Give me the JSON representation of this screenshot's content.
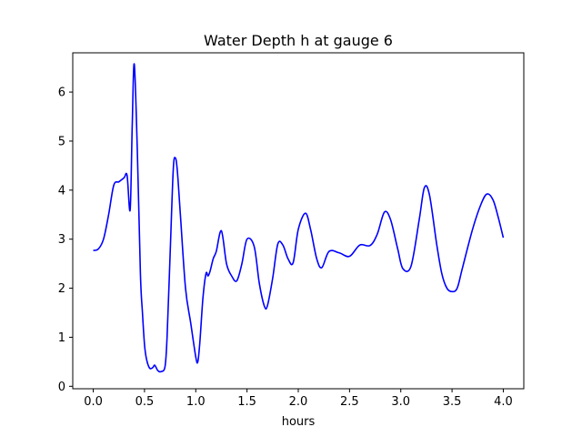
{
  "chart_data": {
    "type": "line",
    "title": "Water Depth h at gauge 6",
    "xlabel": "hours",
    "ylabel": "",
    "xlim": [
      -0.2,
      4.2
    ],
    "ylim": [
      -0.05,
      6.8
    ],
    "xticks": [
      "0.0",
      "0.5",
      "1.0",
      "1.5",
      "2.0",
      "2.5",
      "3.0",
      "3.5",
      "4.0"
    ],
    "yticks": [
      "0",
      "1",
      "2",
      "3",
      "4",
      "5",
      "6"
    ],
    "grid": false,
    "color": "#0000ff",
    "series": [
      {
        "name": "",
        "x": [
          0.0,
          0.05,
          0.1,
          0.15,
          0.2,
          0.25,
          0.3,
          0.33,
          0.36,
          0.38,
          0.4,
          0.43,
          0.46,
          0.48,
          0.5,
          0.52,
          0.55,
          0.58,
          0.6,
          0.63,
          0.66,
          0.7,
          0.72,
          0.75,
          0.78,
          0.8,
          0.82,
          0.85,
          0.9,
          0.95,
          1.0,
          1.02,
          1.04,
          1.07,
          1.1,
          1.12,
          1.14,
          1.17,
          1.2,
          1.25,
          1.3,
          1.35,
          1.4,
          1.45,
          1.5,
          1.57,
          1.62,
          1.67,
          1.7,
          1.75,
          1.8,
          1.85,
          1.9,
          1.95,
          2.0,
          2.07,
          2.12,
          2.18,
          2.23,
          2.3,
          2.4,
          2.5,
          2.6,
          2.7,
          2.77,
          2.84,
          2.9,
          2.97,
          3.02,
          3.1,
          3.18,
          3.23,
          3.28,
          3.35,
          3.4,
          3.45,
          3.5,
          3.55,
          3.6,
          3.7,
          3.78,
          3.84,
          3.9,
          3.95,
          4.0
        ],
        "y": [
          2.77,
          2.8,
          3.0,
          3.5,
          4.1,
          4.17,
          4.25,
          4.3,
          3.6,
          5.3,
          6.57,
          4.8,
          2.3,
          1.5,
          0.85,
          0.55,
          0.37,
          0.38,
          0.43,
          0.32,
          0.3,
          0.4,
          1.0,
          2.7,
          4.4,
          4.66,
          4.4,
          3.5,
          2.0,
          1.3,
          0.6,
          0.5,
          0.9,
          1.8,
          2.3,
          2.25,
          2.35,
          2.6,
          2.75,
          3.17,
          2.5,
          2.25,
          2.15,
          2.5,
          3.0,
          2.85,
          2.1,
          1.63,
          1.65,
          2.2,
          2.9,
          2.88,
          2.6,
          2.52,
          3.2,
          3.53,
          3.2,
          2.6,
          2.42,
          2.75,
          2.72,
          2.65,
          2.88,
          2.87,
          3.1,
          3.55,
          3.4,
          2.8,
          2.4,
          2.45,
          3.4,
          4.05,
          3.9,
          2.9,
          2.3,
          2.0,
          1.93,
          2.0,
          2.4,
          3.2,
          3.7,
          3.92,
          3.8,
          3.45,
          3.03
        ]
      }
    ]
  }
}
